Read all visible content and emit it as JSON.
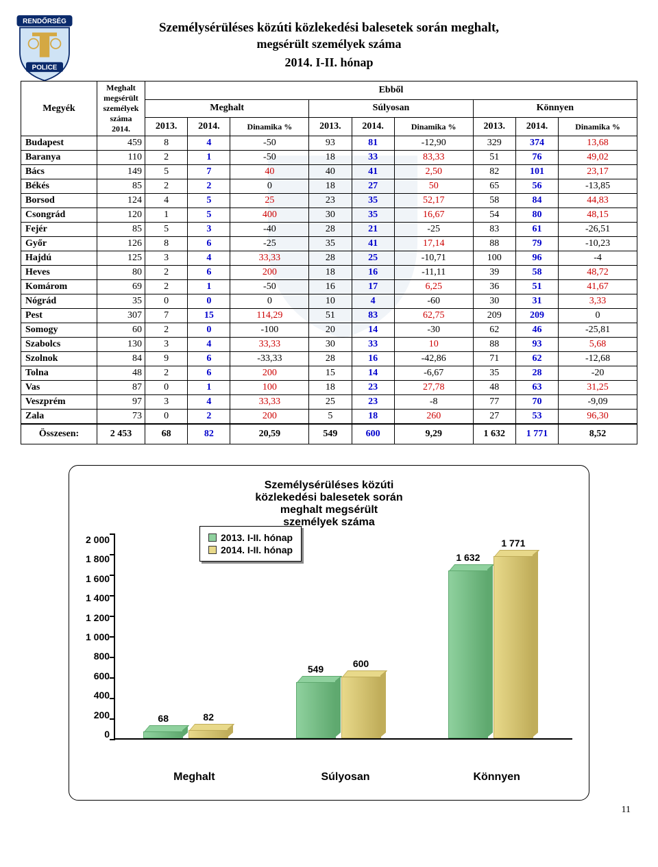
{
  "title_line1": "Személysérüléses közúti közlekedési balesetek során meghalt,",
  "title_line2": "megsérült személyek száma",
  "period": "2014. I-II. hónap",
  "page_number": "11",
  "headers": {
    "col_county": "Megyék",
    "col_total": "Meghalt megsérült személyek száma 2014.",
    "col_ebbol": "Ebből",
    "col_meghalt": "Meghalt",
    "col_sulyosan": "Súlyosan",
    "col_konnyen": "Könnyen",
    "y2013": "2013.",
    "y2014": "2014.",
    "dinamika": "Dinamika %"
  },
  "rows": [
    {
      "name": "Budapest",
      "total": "459",
      "m13": "8",
      "m14": "4",
      "md": "-50",
      "s13": "93",
      "s14": "81",
      "sd": "-12,90",
      "k13": "329",
      "k14": "374",
      "kd": "13,68",
      "mdc": "black",
      "sdc": "black",
      "kdc": "red"
    },
    {
      "name": "Baranya",
      "total": "110",
      "m13": "2",
      "m14": "1",
      "md": "-50",
      "s13": "18",
      "s14": "33",
      "sd": "83,33",
      "k13": "51",
      "k14": "76",
      "kd": "49,02",
      "mdc": "black",
      "sdc": "red",
      "kdc": "red"
    },
    {
      "name": "Bács",
      "total": "149",
      "m13": "5",
      "m14": "7",
      "md": "40",
      "s13": "40",
      "s14": "41",
      "sd": "2,50",
      "k13": "82",
      "k14": "101",
      "kd": "23,17",
      "mdc": "red",
      "sdc": "red",
      "kdc": "red"
    },
    {
      "name": "Békés",
      "total": "85",
      "m13": "2",
      "m14": "2",
      "md": "0",
      "s13": "18",
      "s14": "27",
      "sd": "50",
      "k13": "65",
      "k14": "56",
      "kd": "-13,85",
      "mdc": "black",
      "sdc": "red",
      "kdc": "black"
    },
    {
      "name": "Borsod",
      "total": "124",
      "m13": "4",
      "m14": "5",
      "md": "25",
      "s13": "23",
      "s14": "35",
      "sd": "52,17",
      "k13": "58",
      "k14": "84",
      "kd": "44,83",
      "mdc": "red",
      "sdc": "red",
      "kdc": "red"
    },
    {
      "name": "Csongrád",
      "total": "120",
      "m13": "1",
      "m14": "5",
      "md": "400",
      "s13": "30",
      "s14": "35",
      "sd": "16,67",
      "k13": "54",
      "k14": "80",
      "kd": "48,15",
      "mdc": "red",
      "sdc": "red",
      "kdc": "red"
    },
    {
      "name": "Fejér",
      "total": "85",
      "m13": "5",
      "m14": "3",
      "md": "-40",
      "s13": "28",
      "s14": "21",
      "sd": "-25",
      "k13": "83",
      "k14": "61",
      "kd": "-26,51",
      "mdc": "black",
      "sdc": "black",
      "kdc": "black"
    },
    {
      "name": "Győr",
      "total": "126",
      "m13": "8",
      "m14": "6",
      "md": "-25",
      "s13": "35",
      "s14": "41",
      "sd": "17,14",
      "k13": "88",
      "k14": "79",
      "kd": "-10,23",
      "mdc": "black",
      "sdc": "red",
      "kdc": "black"
    },
    {
      "name": "Hajdú",
      "total": "125",
      "m13": "3",
      "m14": "4",
      "md": "33,33",
      "s13": "28",
      "s14": "25",
      "sd": "-10,71",
      "k13": "100",
      "k14": "96",
      "kd": "-4",
      "mdc": "red",
      "sdc": "black",
      "kdc": "black"
    },
    {
      "name": "Heves",
      "total": "80",
      "m13": "2",
      "m14": "6",
      "md": "200",
      "s13": "18",
      "s14": "16",
      "sd": "-11,11",
      "k13": "39",
      "k14": "58",
      "kd": "48,72",
      "mdc": "red",
      "sdc": "black",
      "kdc": "red"
    },
    {
      "name": "Komárom",
      "total": "69",
      "m13": "2",
      "m14": "1",
      "md": "-50",
      "s13": "16",
      "s14": "17",
      "sd": "6,25",
      "k13": "36",
      "k14": "51",
      "kd": "41,67",
      "mdc": "black",
      "sdc": "red",
      "kdc": "red"
    },
    {
      "name": "Nógrád",
      "total": "35",
      "m13": "0",
      "m14": "0",
      "md": "0",
      "s13": "10",
      "s14": "4",
      "sd": "-60",
      "k13": "30",
      "k14": "31",
      "kd": "3,33",
      "mdc": "black",
      "sdc": "black",
      "kdc": "red"
    },
    {
      "name": "Pest",
      "total": "307",
      "m13": "7",
      "m14": "15",
      "md": "114,29",
      "s13": "51",
      "s14": "83",
      "sd": "62,75",
      "k13": "209",
      "k14": "209",
      "kd": "0",
      "mdc": "red",
      "sdc": "red",
      "kdc": "black"
    },
    {
      "name": "Somogy",
      "total": "60",
      "m13": "2",
      "m14": "0",
      "md": "-100",
      "s13": "20",
      "s14": "14",
      "sd": "-30",
      "k13": "62",
      "k14": "46",
      "kd": "-25,81",
      "mdc": "black",
      "sdc": "black",
      "kdc": "black"
    },
    {
      "name": "Szabolcs",
      "total": "130",
      "m13": "3",
      "m14": "4",
      "md": "33,33",
      "s13": "30",
      "s14": "33",
      "sd": "10",
      "k13": "88",
      "k14": "93",
      "kd": "5,68",
      "mdc": "red",
      "sdc": "red",
      "kdc": "red"
    },
    {
      "name": "Szolnok",
      "total": "84",
      "m13": "9",
      "m14": "6",
      "md": "-33,33",
      "s13": "28",
      "s14": "16",
      "sd": "-42,86",
      "k13": "71",
      "k14": "62",
      "kd": "-12,68",
      "mdc": "black",
      "sdc": "black",
      "kdc": "black"
    },
    {
      "name": "Tolna",
      "total": "48",
      "m13": "2",
      "m14": "6",
      "md": "200",
      "s13": "15",
      "s14": "14",
      "sd": "-6,67",
      "k13": "35",
      "k14": "28",
      "kd": "-20",
      "mdc": "red",
      "sdc": "black",
      "kdc": "black"
    },
    {
      "name": "Vas",
      "total": "87",
      "m13": "0",
      "m14": "1",
      "md": "100",
      "s13": "18",
      "s14": "23",
      "sd": "27,78",
      "k13": "48",
      "k14": "63",
      "kd": "31,25",
      "mdc": "red",
      "sdc": "red",
      "kdc": "red"
    },
    {
      "name": "Veszprém",
      "total": "97",
      "m13": "3",
      "m14": "4",
      "md": "33,33",
      "s13": "25",
      "s14": "23",
      "sd": "-8",
      "k13": "77",
      "k14": "70",
      "kd": "-9,09",
      "mdc": "red",
      "sdc": "black",
      "kdc": "black"
    },
    {
      "name": "Zala",
      "total": "73",
      "m13": "0",
      "m14": "2",
      "md": "200",
      "s13": "5",
      "s14": "18",
      "sd": "260",
      "k13": "27",
      "k14": "53",
      "kd": "96,30",
      "mdc": "red",
      "sdc": "red",
      "kdc": "red"
    }
  ],
  "total_row": {
    "name": "Összesen:",
    "total": "2 453",
    "m13": "68",
    "m14": "82",
    "md": "20,59",
    "s13": "549",
    "s14": "600",
    "sd": "9,29",
    "k13": "1 632",
    "k14": "1 771",
    "kd": "8,52"
  },
  "chart": {
    "title_l1": "Személysérüléses közúti",
    "title_l2": "közlekedési balesetek során",
    "title_l3": "meghalt megsérült",
    "title_l4": "személyek száma",
    "legend_2013": "2013. I-II. hónap",
    "legend_2014": "2014. I-II. hónap",
    "color_2013": "#8fd19e",
    "color_2013_dark": "#5fa96f",
    "color_2014": "#e8d98a",
    "color_2014_dark": "#c0ad5a",
    "y_ticks": [
      "2 000",
      "1 800",
      "1 600",
      "1 400",
      "1 200",
      "1 000",
      "800",
      "600",
      "400",
      "200",
      "0"
    ],
    "y_max": 2000,
    "categories": [
      "Meghalt",
      "Súlyosan",
      "Könnyen"
    ],
    "series": [
      {
        "label": "68",
        "val": 68,
        "which": "2013"
      },
      {
        "label": "82",
        "val": 82,
        "which": "2014"
      },
      {
        "label": "549",
        "val": 549,
        "which": "2013"
      },
      {
        "label": "600",
        "val": 600,
        "which": "2014"
      },
      {
        "label": "1 632",
        "val": 1632,
        "which": "2013"
      },
      {
        "label": "1 771",
        "val": 1771,
        "which": "2014"
      }
    ]
  }
}
